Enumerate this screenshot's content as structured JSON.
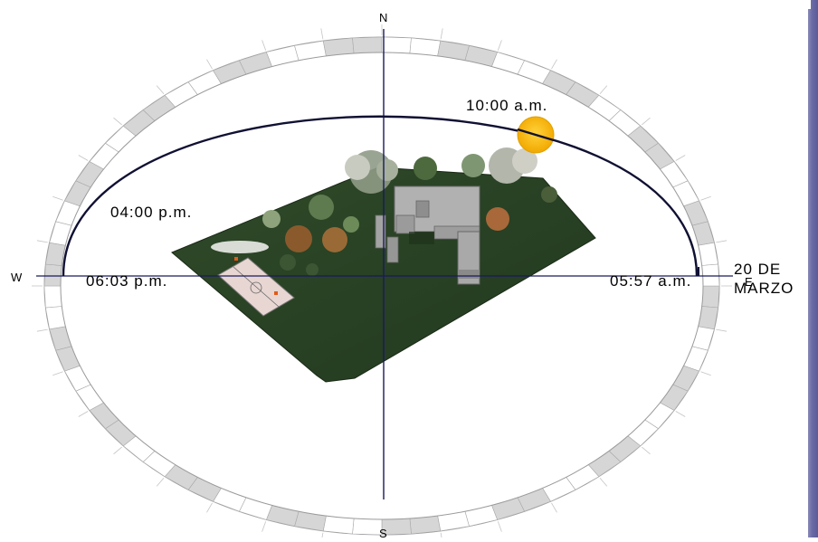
{
  "compass": {
    "north": "N",
    "south": "S",
    "west": "W",
    "east": "E"
  },
  "times": {
    "morning": "10:00 a.m.",
    "afternoon": "04:00 p.m.",
    "sunset": "06:03 p.m.",
    "sunrise": "05:57 a.m."
  },
  "date": {
    "line1": "20 DE",
    "line2": "MARZO"
  },
  "colors": {
    "path": "#101033",
    "axis": "#1a1a5e",
    "ring_shade": "#d6d6d6",
    "ground": "#2d4727",
    "sun": "#f5b800",
    "building": "#a7a7a7",
    "court": "#e6d4d0",
    "accent_bar": "#6a6aa6"
  },
  "icons": {
    "sun": "sun-icon",
    "building": "house-model"
  }
}
